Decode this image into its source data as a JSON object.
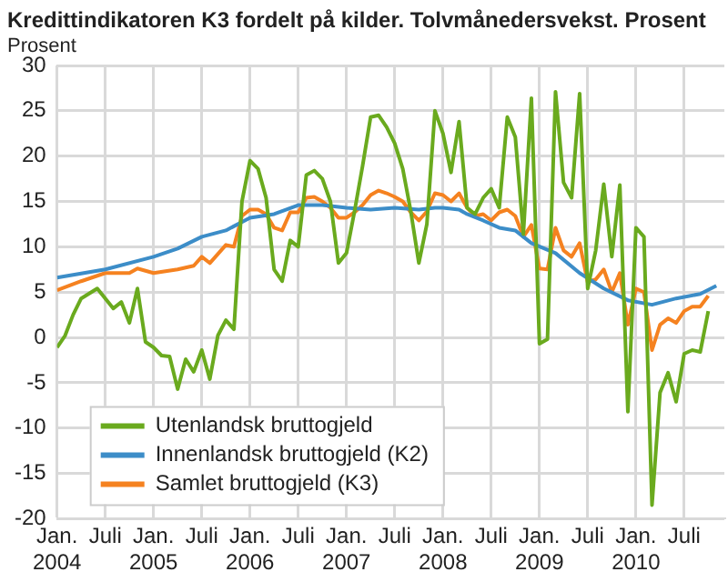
{
  "chart_data": {
    "type": "line",
    "title": "Kredittindikatoren K3 fordelt på kilder. Tolvmånedersvekst. Prosent",
    "ylabel": "Prosent",
    "xlim": [
      "2004-01",
      "2010-12"
    ],
    "xticks": [
      {
        "value": "2004-01",
        "label": "Jan.\n2004"
      },
      {
        "value": "2004-07",
        "label": "Juli"
      },
      {
        "value": "2005-01",
        "label": "Jan.\n2005"
      },
      {
        "value": "2005-07",
        "label": "Juli"
      },
      {
        "value": "2006-01",
        "label": "Jan.\n2006"
      },
      {
        "value": "2006-07",
        "label": "Juli"
      },
      {
        "value": "2007-01",
        "label": "Jan.\n2007"
      },
      {
        "value": "2007-07",
        "label": "Juli"
      },
      {
        "value": "2008-01",
        "label": "Jan.\n2008"
      },
      {
        "value": "2008-07",
        "label": "Juli"
      },
      {
        "value": "2009-01",
        "label": "Jan.\n2009"
      },
      {
        "value": "2009-07",
        "label": "Juli"
      },
      {
        "value": "2010-01",
        "label": "Jan.\n2010"
      },
      {
        "value": "2010-07",
        "label": "Juli"
      }
    ],
    "ylim": [
      -20,
      30
    ],
    "yticks": [
      -20,
      -15,
      -10,
      -5,
      0,
      5,
      10,
      15,
      20,
      25,
      30
    ],
    "grid": true,
    "legend": "bottom left",
    "marker": "none",
    "line_style": "solid",
    "series": [
      {
        "name": "Utenlandsk bruttogjeld",
        "color": "#6aaa1e",
        "x": [
          "2004-01",
          "2004-02",
          "2004-03",
          "2004-04",
          "2004-06",
          "2004-08",
          "2004-09",
          "2004-10",
          "2004-11",
          "2004-12",
          "2005-01",
          "2005-02",
          "2005-03",
          "2005-04",
          "2005-05",
          "2005-06",
          "2005-07",
          "2005-08",
          "2005-09",
          "2005-10",
          "2005-11",
          "2005-12",
          "2006-01",
          "2006-02",
          "2006-03",
          "2006-04",
          "2006-05",
          "2006-06",
          "2006-07",
          "2006-08",
          "2006-09",
          "2006-10",
          "2006-11",
          "2006-12",
          "2007-01",
          "2007-02",
          "2007-03",
          "2007-04",
          "2007-05",
          "2007-06",
          "2007-07",
          "2007-08",
          "2007-09",
          "2007-10",
          "2007-11",
          "2007-12",
          "2008-01",
          "2008-02",
          "2008-03",
          "2008-04",
          "2008-05",
          "2008-06",
          "2008-07",
          "2008-08",
          "2008-09",
          "2008-10",
          "2008-11",
          "2008-12",
          "2009-01",
          "2009-02",
          "2009-03",
          "2009-04",
          "2009-05",
          "2009-06",
          "2009-07",
          "2009-08",
          "2009-09",
          "2009-10",
          "2009-11",
          "2009-12",
          "2010-01",
          "2010-02",
          "2010-03",
          "2010-04",
          "2010-05",
          "2010-06",
          "2010-07",
          "2010-08",
          "2010-09",
          "2010-10"
        ],
        "values": [
          -1.1,
          0.2,
          2.5,
          4.3,
          5.4,
          3.2,
          3.9,
          1.6,
          5.4,
          -0.5,
          -1.1,
          -2,
          -2.1,
          -5.7,
          -2.4,
          -3.8,
          -1.4,
          -4.6,
          0.2,
          1.9,
          0.9,
          15,
          19.5,
          18.6,
          15.4,
          7.5,
          6.2,
          10.7,
          10,
          17.9,
          18.4,
          17.5,
          15,
          8.2,
          9.3,
          13.9,
          18.9,
          24.3,
          24.5,
          23.2,
          21.4,
          18.6,
          13.9,
          8.2,
          12.5,
          25,
          22.5,
          18.2,
          23.8,
          14.3,
          13.6,
          15.4,
          16.4,
          14.3,
          24.3,
          22.1,
          11.4,
          26.4,
          -0.7,
          -0.2,
          27.1,
          17.1,
          15.4,
          26.9,
          5.4,
          9.6,
          16.9,
          8.9,
          16.8,
          -8.2,
          12.1,
          11.1,
          -18.5,
          -6.1,
          -3.9,
          -7.1,
          -1.8,
          -1.4,
          -1.6,
          2.9
        ]
      },
      {
        "name": "Innenlandsk bruttogjeld (K2)",
        "color": "#3c8dc8",
        "x": [
          "2004-01",
          "2004-07",
          "2005-01",
          "2005-04",
          "2005-07",
          "2005-10",
          "2006-01",
          "2006-04",
          "2006-07",
          "2006-10",
          "2007-01",
          "2007-04",
          "2007-07",
          "2007-10",
          "2007-12",
          "2008-01",
          "2008-03",
          "2008-04",
          "2008-06",
          "2008-08",
          "2008-10",
          "2008-12",
          "2009-03",
          "2009-06",
          "2009-09",
          "2009-12",
          "2010-03",
          "2010-06",
          "2010-09",
          "2010-11"
        ],
        "values": [
          6.6,
          7.5,
          8.9,
          9.8,
          11.1,
          11.8,
          13.2,
          13.6,
          14.6,
          14.6,
          14.3,
          14.1,
          14.3,
          14.1,
          14.3,
          14.3,
          14.1,
          13.6,
          12.9,
          12.1,
          11.8,
          10.4,
          9.3,
          7.1,
          5.4,
          4.1,
          3.6,
          4.3,
          4.8,
          5.7
        ]
      },
      {
        "name": "Samlet bruttogjeld (K3)",
        "color": "#f58220",
        "x": [
          "2004-01",
          "2004-04",
          "2004-07",
          "2004-10",
          "2004-11",
          "2005-01",
          "2005-04",
          "2005-06",
          "2005-07",
          "2005-08",
          "2005-10",
          "2005-11",
          "2005-12",
          "2006-01",
          "2006-02",
          "2006-03",
          "2006-04",
          "2006-05",
          "2006-06",
          "2006-07",
          "2006-08",
          "2006-09",
          "2006-10",
          "2006-11",
          "2006-12",
          "2007-01",
          "2007-02",
          "2007-03",
          "2007-04",
          "2007-05",
          "2007-06",
          "2007-07",
          "2007-08",
          "2007-09",
          "2007-10",
          "2007-11",
          "2007-12",
          "2008-01",
          "2008-02",
          "2008-03",
          "2008-04",
          "2008-05",
          "2008-06",
          "2008-07",
          "2008-08",
          "2008-09",
          "2008-10",
          "2008-11",
          "2008-12",
          "2009-01",
          "2009-02",
          "2009-03",
          "2009-04",
          "2009-05",
          "2009-06",
          "2009-07",
          "2009-08",
          "2009-09",
          "2009-10",
          "2009-11",
          "2009-12",
          "2010-01",
          "2010-02",
          "2010-03",
          "2010-04",
          "2010-05",
          "2010-06",
          "2010-07",
          "2010-08",
          "2010-09",
          "2010-10"
        ],
        "values": [
          5.2,
          6.2,
          7.1,
          7.1,
          7.6,
          7.1,
          7.5,
          7.9,
          8.9,
          8.2,
          10.2,
          10,
          13.4,
          14.1,
          14.1,
          13.6,
          12.1,
          11.8,
          13.8,
          13.8,
          15.4,
          15.5,
          15,
          14.3,
          13.2,
          13.2,
          13.8,
          14.6,
          15.7,
          16.2,
          15.9,
          15.5,
          15,
          13.8,
          12.9,
          13.9,
          15.9,
          15.7,
          15,
          15.9,
          14.3,
          13.4,
          13.6,
          12.9,
          13.8,
          14.1,
          13.4,
          11.1,
          12.4,
          7.6,
          7.5,
          12.1,
          9.6,
          8.9,
          10.4,
          6.1,
          6.4,
          7.5,
          5,
          7.1,
          1.4,
          5.4,
          5,
          -1.4,
          1.4,
          2.1,
          1.6,
          2.9,
          3.4,
          3.4,
          4.6
        ]
      }
    ]
  }
}
